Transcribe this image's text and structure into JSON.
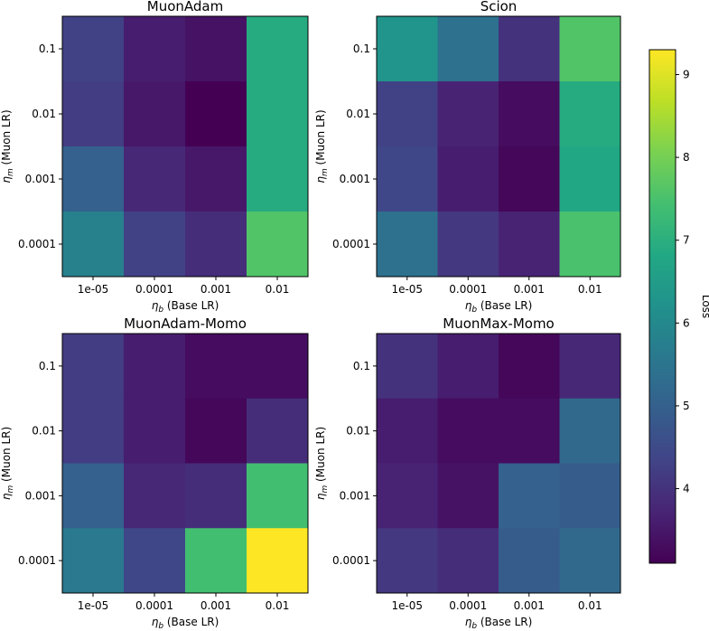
{
  "chart_data": [
    {
      "type": "heatmap",
      "title": "MuonAdam",
      "x_categories": [
        "1e-05",
        "0.0001",
        "0.001",
        "0.01"
      ],
      "y_categories": [
        "0.1",
        "0.01",
        "0.001",
        "0.0001"
      ],
      "xlabel_symbol": "η",
      "xlabel_sub": "b",
      "xlabel_text": " (Base LR)",
      "ylabel_symbol": "η",
      "ylabel_sub": "m",
      "ylabel_text": " (Muon LR)",
      "values": [
        [
          4.3,
          3.6,
          3.4,
          6.9
        ],
        [
          4.2,
          3.5,
          3.1,
          6.9
        ],
        [
          5.0,
          3.8,
          3.5,
          6.9
        ],
        [
          5.8,
          4.3,
          3.9,
          7.6
        ]
      ]
    },
    {
      "type": "heatmap",
      "title": "Scion",
      "x_categories": [
        "1e-05",
        "0.0001",
        "0.001",
        "0.01"
      ],
      "y_categories": [
        "0.1",
        "0.01",
        "0.001",
        "0.0001"
      ],
      "xlabel_symbol": "η",
      "xlabel_sub": "b",
      "xlabel_text": " (Base LR)",
      "ylabel_symbol": "η",
      "ylabel_sub": "m",
      "ylabel_text": " (Muon LR)",
      "values": [
        [
          6.3,
          5.4,
          4.0,
          7.6
        ],
        [
          4.3,
          3.7,
          3.3,
          6.9
        ],
        [
          4.4,
          3.6,
          3.2,
          6.8
        ],
        [
          5.4,
          4.1,
          3.7,
          7.5
        ]
      ]
    },
    {
      "type": "heatmap",
      "title": "MuonAdam-Momo",
      "x_categories": [
        "1e-05",
        "0.0001",
        "0.001",
        "0.01"
      ],
      "y_categories": [
        "0.1",
        "0.01",
        "0.001",
        "0.0001"
      ],
      "xlabel_symbol": "η",
      "xlabel_sub": "b",
      "xlabel_text": " (Base LR)",
      "ylabel_symbol": "η",
      "ylabel_sub": "m",
      "ylabel_text": " (Muon LR)",
      "values": [
        [
          4.2,
          3.6,
          3.3,
          3.3
        ],
        [
          4.2,
          3.6,
          3.2,
          3.9
        ],
        [
          5.0,
          3.8,
          3.9,
          7.4
        ],
        [
          5.6,
          4.4,
          7.4,
          9.3
        ]
      ]
    },
    {
      "type": "heatmap",
      "title": "MuonMax-Momo",
      "x_categories": [
        "1e-05",
        "0.0001",
        "0.001",
        "0.01"
      ],
      "y_categories": [
        "0.1",
        "0.01",
        "0.001",
        "0.0001"
      ],
      "xlabel_symbol": "η",
      "xlabel_sub": "b",
      "xlabel_text": " (Base LR)",
      "ylabel_symbol": "η",
      "ylabel_sub": "m",
      "ylabel_text": " (Muon LR)",
      "values": [
        [
          4.0,
          3.6,
          3.2,
          3.8
        ],
        [
          3.6,
          3.3,
          3.3,
          5.2
        ],
        [
          3.7,
          3.4,
          5.0,
          4.9
        ],
        [
          4.1,
          3.9,
          4.9,
          5.2
        ]
      ]
    }
  ],
  "colorbar": {
    "label": "Loss",
    "colormap": "viridis",
    "min": 3.1,
    "max": 9.3,
    "ticks": [
      4,
      5,
      6,
      7,
      8,
      9
    ],
    "colors": [
      "#440154",
      "#482475",
      "#414487",
      "#355f8d",
      "#2a788e",
      "#21918c",
      "#22a884",
      "#44bf70",
      "#7ad151",
      "#bddf26",
      "#fde725"
    ]
  }
}
